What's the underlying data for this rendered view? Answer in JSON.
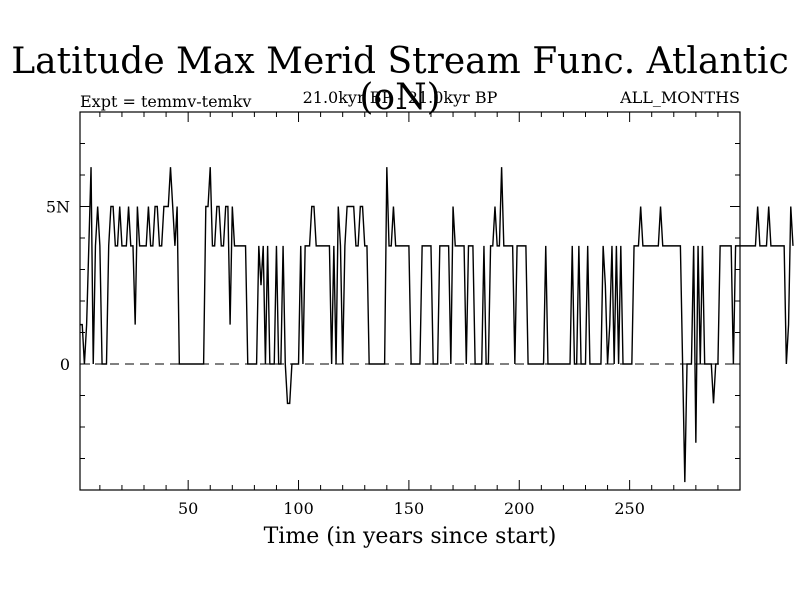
{
  "header": {
    "title": "Latitude Max Merid Stream Func. Atlantic (oN)",
    "experiment": "Expt = temmv-temkv",
    "period": "21.0kyr BP - 21.0kyr BP",
    "months": "ALL_MONTHS"
  },
  "chart_data": {
    "type": "line",
    "title": "Latitude Max Merid Stream Func. Atlantic (oN)",
    "xlabel": "Time (in years since start)",
    "ylabel": "",
    "xlim": [
      1,
      300
    ],
    "ylim": [
      -4,
      8
    ],
    "xticks": [
      50,
      100,
      150,
      200,
      250
    ],
    "xtick_labels": [
      "50",
      "100",
      "150",
      "200",
      "250"
    ],
    "yticks": [
      0,
      5
    ],
    "ytick_labels": [
      "0",
      "5N"
    ],
    "zero_line": "dashed",
    "grid": false,
    "series": [
      {
        "values": [
          1.25,
          1.25,
          0,
          1.25,
          3.75,
          6.25,
          0,
          3.75,
          5,
          3.75,
          0,
          0,
          0,
          3.75,
          5,
          5,
          3.75,
          3.75,
          5,
          3.75,
          3.75,
          3.75,
          5,
          3.75,
          3.75,
          1.25,
          5,
          3.75,
          3.75,
          3.75,
          3.75,
          5,
          3.75,
          3.75,
          5,
          5,
          3.75,
          3.75,
          5,
          5,
          5,
          6.25,
          5,
          3.75,
          5,
          0,
          0,
          0,
          0,
          0,
          0,
          0,
          0,
          0,
          0,
          0,
          0,
          5,
          5,
          6.25,
          3.75,
          3.75,
          5,
          5,
          3.75,
          3.75,
          5,
          5,
          1.25,
          5,
          3.75,
          3.75,
          3.75,
          3.75,
          3.75,
          3.75,
          0,
          0,
          0,
          0,
          0,
          3.75,
          2.5,
          3.75,
          0,
          3.75,
          0,
          0,
          0,
          3.75,
          0,
          0,
          3.75,
          0,
          -1.25,
          -1.25,
          0,
          0,
          0,
          0,
          3.75,
          0,
          3.75,
          3.75,
          3.75,
          5,
          5,
          3.75,
          3.75,
          3.75,
          3.75,
          3.75,
          3.75,
          3.75,
          0,
          3.75,
          0,
          5,
          3.75,
          0,
          3.75,
          5,
          5,
          5,
          5,
          3.75,
          3.75,
          5,
          5,
          3.75,
          3.75,
          0,
          0,
          0,
          0,
          0,
          0,
          0,
          0,
          6.25,
          3.75,
          3.75,
          5,
          3.75,
          3.75,
          3.75,
          3.75,
          3.75,
          3.75,
          3.75,
          0,
          0,
          0,
          0,
          0,
          3.75,
          3.75,
          3.75,
          3.75,
          3.75,
          0,
          0,
          0,
          3.75,
          3.75,
          3.75,
          3.75,
          3.75,
          0,
          5,
          3.75,
          3.75,
          3.75,
          3.75,
          3.75,
          0,
          3.75,
          3.75,
          3.75,
          0,
          0,
          0,
          0,
          3.75,
          0,
          0,
          3.75,
          3.75,
          5,
          3.75,
          3.75,
          6.25,
          3.75,
          3.75,
          3.75,
          3.75,
          3.75,
          0,
          3.75,
          3.75,
          3.75,
          3.75,
          3.75,
          0,
          0,
          0,
          0,
          0,
          0,
          0,
          0,
          3.75,
          0,
          0,
          0,
          0,
          0,
          0,
          0,
          0,
          0,
          0,
          0,
          3.75,
          0,
          0,
          3.75,
          0,
          0,
          0,
          3.75,
          0,
          0,
          0,
          0,
          0,
          0,
          3.75,
          2.5,
          0,
          1.25,
          3.75,
          0,
          3.75,
          0,
          3.75,
          0,
          0,
          0,
          0,
          0,
          3.75,
          3.75,
          3.75,
          5,
          3.75,
          3.75,
          3.75,
          3.75,
          3.75,
          3.75,
          3.75,
          3.75,
          5,
          3.75,
          3.75,
          3.75,
          3.75,
          3.75,
          3.75,
          3.75,
          3.75,
          3.75,
          0,
          -3.75,
          0,
          0,
          0,
          3.75,
          -2.5,
          3.75,
          0,
          3.75,
          0,
          0,
          0,
          0,
          -1.25,
          0,
          0,
          3.75,
          3.75,
          3.75,
          3.75,
          3.75,
          3.75,
          0,
          3.75,
          3.75,
          3.75,
          3.75,
          3.75,
          3.75,
          3.75,
          3.75,
          3.75,
          3.75,
          5,
          3.75,
          3.75,
          3.75,
          3.75,
          5,
          3.75,
          3.75,
          3.75,
          3.75,
          3.75,
          3.75,
          3.75,
          0,
          1.25,
          5,
          3.75
        ]
      }
    ]
  }
}
